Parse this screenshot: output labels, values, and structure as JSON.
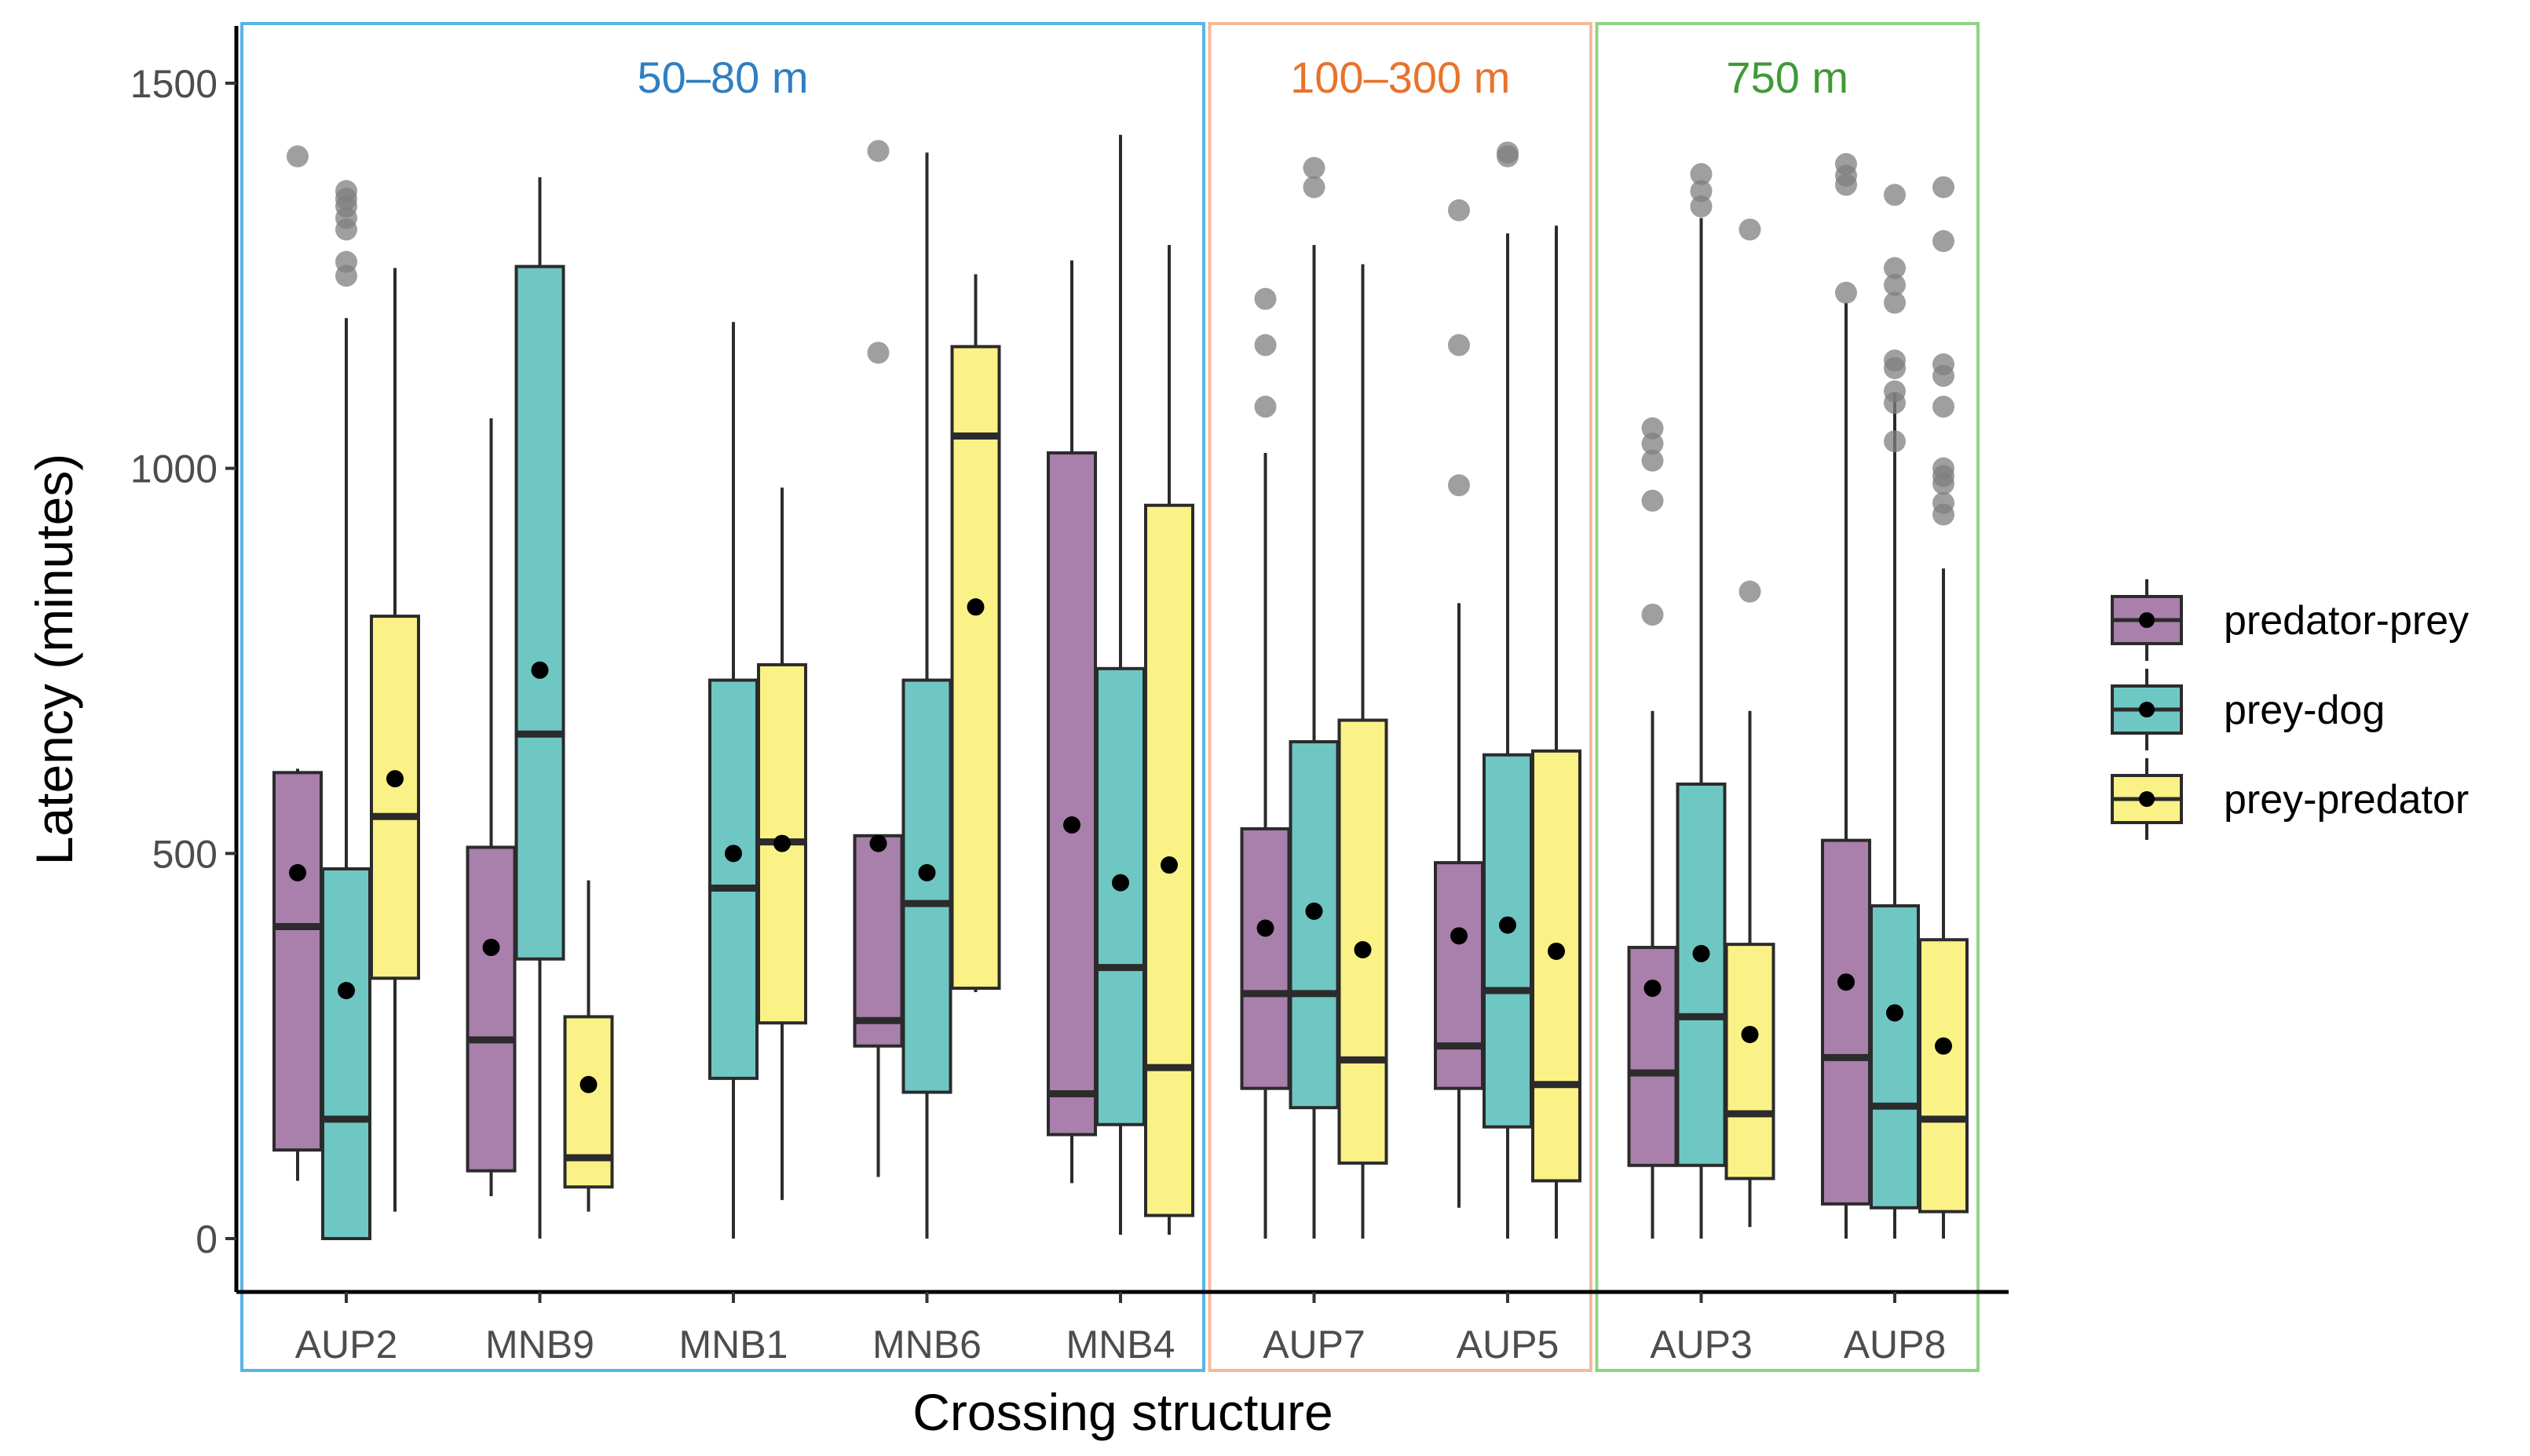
{
  "chart_data": {
    "type": "boxplot",
    "xlabel": "Crossing structure",
    "ylabel": "Latency (minutes)",
    "ylim": [
      -40,
      1580
    ],
    "yticks": [
      0,
      500,
      1000,
      1500
    ],
    "categories": [
      "AUP2",
      "MNB9",
      "MNB1",
      "MNB6",
      "MNB4",
      "AUP7",
      "AUP5",
      "AUP3",
      "AUP8"
    ],
    "legend": {
      "position": "right",
      "entries": [
        {
          "name": "predator-prey",
          "color": "#a97fab"
        },
        {
          "name": "prey-dog",
          "color": "#6fc7c3"
        },
        {
          "name": "prey-predator",
          "color": "#fbf287"
        }
      ]
    },
    "colors": {
      "predator-prey": "#a97fab",
      "prey-dog": "#6fc7c3",
      "prey-predator": "#fbf287",
      "outline": "#2b2b2b",
      "outlier": "#7f7f7f",
      "mean": "#000000"
    },
    "groups": [
      {
        "label": "50–80 m",
        "color": "#5ab4e5",
        "text_color": "#2f7fc1",
        "from": "AUP2",
        "to": "MNB4"
      },
      {
        "label": "100–300 m",
        "color": "#f7b99a",
        "text_color": "#e8732c",
        "from": "AUP7",
        "to": "AUP5"
      },
      {
        "label": "750 m",
        "color": "#8fd483",
        "text_color": "#3f9a35",
        "from": "AUP3",
        "to": "AUP8"
      }
    ],
    "series": [
      {
        "name": "predator-prey",
        "boxes": [
          {
            "category": "AUP2",
            "min": 75,
            "q1": 115,
            "median": 405,
            "q3": 605,
            "max": 610,
            "mean": 475,
            "outliers": [
              1405
            ]
          },
          {
            "category": "MNB9",
            "min": 55,
            "q1": 88,
            "median": 258,
            "q3": 508,
            "max": 1065,
            "mean": 378,
            "outliers": []
          },
          {
            "category": "MNB1",
            "absent": true
          },
          {
            "category": "MNB6",
            "min": 80,
            "q1": 250,
            "median": 283,
            "q3": 523,
            "max": 523,
            "mean": 513,
            "outliers": [
              1150,
              1412
            ]
          },
          {
            "category": "MNB4",
            "min": 72,
            "q1": 135,
            "median": 188,
            "q3": 1020,
            "max": 1270,
            "mean": 537,
            "outliers": []
          },
          {
            "category": "AUP7",
            "min": 0,
            "q1": 195,
            "median": 318,
            "q3": 532,
            "max": 1020,
            "mean": 403,
            "outliers": [
              1080,
              1160,
              1220
            ]
          },
          {
            "category": "AUP5",
            "min": 40,
            "q1": 195,
            "median": 250,
            "q3": 488,
            "max": 825,
            "mean": 393,
            "outliers": [
              978,
              1160,
              1335
            ]
          },
          {
            "category": "AUP3",
            "min": 0,
            "q1": 95,
            "median": 215,
            "q3": 378,
            "max": 685,
            "mean": 325,
            "outliers": [
              810,
              958,
              1010,
              1032,
              1052
            ]
          },
          {
            "category": "AUP8",
            "min": 0,
            "q1": 45,
            "median": 235,
            "q3": 517,
            "max": 1215,
            "mean": 333,
            "outliers": [
              1228,
              1368,
              1380,
              1395
            ]
          }
        ]
      },
      {
        "name": "prey-dog",
        "boxes": [
          {
            "category": "AUP2",
            "min": 0,
            "q1": 0,
            "median": 155,
            "q3": 480,
            "max": 1195,
            "mean": 322,
            "outliers": [
              1250,
              1268,
              1310,
              1325,
              1340,
              1350,
              1360
            ]
          },
          {
            "category": "MNB9",
            "min": 0,
            "q1": 363,
            "median": 655,
            "q3": 1262,
            "max": 1378,
            "mean": 738,
            "outliers": []
          },
          {
            "category": "MNB1",
            "min": 0,
            "q1": 208,
            "median": 455,
            "q3": 725,
            "max": 1190,
            "mean": 500,
            "outliers": []
          },
          {
            "category": "MNB6",
            "min": 0,
            "q1": 190,
            "median": 435,
            "q3": 725,
            "max": 1410,
            "mean": 475,
            "outliers": []
          },
          {
            "category": "MNB4",
            "min": 5,
            "q1": 148,
            "median": 352,
            "q3": 740,
            "max": 1433,
            "mean": 462,
            "outliers": []
          },
          {
            "category": "AUP7",
            "min": 0,
            "q1": 170,
            "median": 318,
            "q3": 645,
            "max": 1290,
            "mean": 425,
            "outliers": [
              1365,
              1390
            ]
          },
          {
            "category": "AUP5",
            "min": 0,
            "q1": 145,
            "median": 322,
            "q3": 628,
            "max": 1305,
            "mean": 407,
            "outliers": [
              1405,
              1410
            ]
          },
          {
            "category": "AUP3",
            "min": 0,
            "q1": 95,
            "median": 288,
            "q3": 590,
            "max": 1325,
            "mean": 370,
            "outliers": [
              1340,
              1360,
              1382
            ]
          },
          {
            "category": "AUP8",
            "min": 0,
            "q1": 40,
            "median": 172,
            "q3": 432,
            "max": 1098,
            "mean": 293,
            "outliers": [
              1035,
              1085,
              1100,
              1130,
              1140,
              1215,
              1238,
              1260,
              1355
            ]
          }
        ]
      },
      {
        "name": "prey-predator",
        "boxes": [
          {
            "category": "AUP2",
            "min": 35,
            "q1": 338,
            "median": 548,
            "q3": 808,
            "max": 1260,
            "mean": 597,
            "outliers": []
          },
          {
            "category": "MNB9",
            "min": 35,
            "q1": 67,
            "median": 105,
            "q3": 288,
            "max": 465,
            "mean": 200,
            "outliers": []
          },
          {
            "category": "MNB1",
            "min": 50,
            "q1": 280,
            "median": 515,
            "q3": 745,
            "max": 975,
            "mean": 513,
            "outliers": []
          },
          {
            "category": "MNB6",
            "min": 320,
            "q1": 325,
            "median": 1042,
            "q3": 1158,
            "max": 1252,
            "mean": 820,
            "outliers": []
          },
          {
            "category": "MNB4",
            "min": 5,
            "q1": 30,
            "median": 222,
            "q3": 952,
            "max": 1290,
            "mean": 485,
            "outliers": []
          },
          {
            "category": "AUP7",
            "min": 0,
            "q1": 98,
            "median": 232,
            "q3": 673,
            "max": 1265,
            "mean": 375,
            "outliers": []
          },
          {
            "category": "AUP5",
            "min": 0,
            "q1": 75,
            "median": 200,
            "q3": 633,
            "max": 1315,
            "mean": 373,
            "outliers": []
          },
          {
            "category": "AUP3",
            "min": 15,
            "q1": 78,
            "median": 162,
            "q3": 382,
            "max": 685,
            "mean": 265,
            "outliers": [
              840,
              1310
            ]
          },
          {
            "category": "AUP8",
            "min": 0,
            "q1": 35,
            "median": 155,
            "q3": 388,
            "max": 870,
            "mean": 250,
            "outliers": [
              940,
              955,
              980,
              990,
              1000,
              1080,
              1120,
              1135,
              1295,
              1365
            ]
          }
        ]
      }
    ]
  }
}
